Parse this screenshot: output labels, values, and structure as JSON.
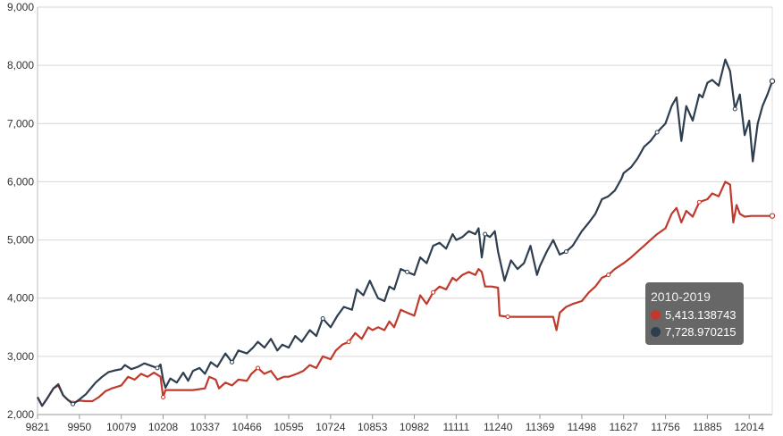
{
  "chart_data": {
    "type": "line",
    "title": "",
    "xlabel": "",
    "ylabel": "",
    "x_ticks": [
      "9821",
      "9950",
      "10079",
      "10208",
      "10337",
      "10466",
      "10595",
      "10724",
      "10853",
      "10982",
      "11111",
      "11240",
      "11369",
      "11498",
      "11627",
      "11756",
      "11885",
      "12014"
    ],
    "x_range": [
      9821,
      12085
    ],
    "y_ticks": [
      "2,000",
      "3,000",
      "4,000",
      "5,000",
      "6,000",
      "7,000",
      "8,000",
      "9,000"
    ],
    "ylim": [
      2000,
      9000
    ],
    "grid": "horizontal",
    "series": [
      {
        "key": "blue",
        "color": "#2e3e4f",
        "points": [
          [
            9821,
            2300
          ],
          [
            9835,
            2150
          ],
          [
            9850,
            2270
          ],
          [
            9870,
            2450
          ],
          [
            9885,
            2520
          ],
          [
            9900,
            2330
          ],
          [
            9915,
            2250
          ],
          [
            9930,
            2180
          ],
          [
            9950,
            2260
          ],
          [
            9970,
            2350
          ],
          [
            9985,
            2450
          ],
          [
            10000,
            2550
          ],
          [
            10020,
            2650
          ],
          [
            10040,
            2730
          ],
          [
            10060,
            2760
          ],
          [
            10079,
            2780
          ],
          [
            10090,
            2850
          ],
          [
            10110,
            2780
          ],
          [
            10130,
            2820
          ],
          [
            10150,
            2880
          ],
          [
            10170,
            2840
          ],
          [
            10190,
            2800
          ],
          [
            10200,
            2860
          ],
          [
            10208,
            2600
          ],
          [
            10215,
            2460
          ],
          [
            10230,
            2620
          ],
          [
            10250,
            2550
          ],
          [
            10270,
            2720
          ],
          [
            10285,
            2580
          ],
          [
            10300,
            2750
          ],
          [
            10320,
            2800
          ],
          [
            10337,
            2700
          ],
          [
            10355,
            2900
          ],
          [
            10375,
            2820
          ],
          [
            10400,
            3050
          ],
          [
            10420,
            2900
          ],
          [
            10440,
            3100
          ],
          [
            10466,
            3050
          ],
          [
            10485,
            3150
          ],
          [
            10500,
            3250
          ],
          [
            10520,
            3150
          ],
          [
            10540,
            3300
          ],
          [
            10560,
            3100
          ],
          [
            10575,
            3200
          ],
          [
            10595,
            3150
          ],
          [
            10615,
            3350
          ],
          [
            10635,
            3250
          ],
          [
            10660,
            3450
          ],
          [
            10680,
            3350
          ],
          [
            10700,
            3650
          ],
          [
            10724,
            3500
          ],
          [
            10745,
            3700
          ],
          [
            10765,
            3850
          ],
          [
            10790,
            3800
          ],
          [
            10805,
            4150
          ],
          [
            10825,
            4050
          ],
          [
            10845,
            4300
          ],
          [
            10853,
            4200
          ],
          [
            10870,
            4000
          ],
          [
            10890,
            3950
          ],
          [
            10905,
            4200
          ],
          [
            10920,
            4150
          ],
          [
            10940,
            4500
          ],
          [
            10960,
            4450
          ],
          [
            10982,
            4400
          ],
          [
            11000,
            4700
          ],
          [
            11020,
            4600
          ],
          [
            11040,
            4900
          ],
          [
            11060,
            4950
          ],
          [
            11080,
            4850
          ],
          [
            11100,
            5100
          ],
          [
            11111,
            5000
          ],
          [
            11130,
            5050
          ],
          [
            11150,
            5150
          ],
          [
            11170,
            5100
          ],
          [
            11180,
            5200
          ],
          [
            11190,
            4700
          ],
          [
            11200,
            5100
          ],
          [
            11215,
            5050
          ],
          [
            11230,
            5150
          ],
          [
            11240,
            4800
          ],
          [
            11260,
            4300
          ],
          [
            11280,
            4650
          ],
          [
            11300,
            4500
          ],
          [
            11320,
            4600
          ],
          [
            11340,
            4900
          ],
          [
            11360,
            4400
          ],
          [
            11369,
            4550
          ],
          [
            11390,
            4800
          ],
          [
            11410,
            5000
          ],
          [
            11430,
            4750
          ],
          [
            11450,
            4800
          ],
          [
            11470,
            4900
          ],
          [
            11498,
            5150
          ],
          [
            11520,
            5300
          ],
          [
            11540,
            5450
          ],
          [
            11560,
            5700
          ],
          [
            11580,
            5750
          ],
          [
            11600,
            5850
          ],
          [
            11620,
            6050
          ],
          [
            11627,
            6150
          ],
          [
            11650,
            6250
          ],
          [
            11670,
            6400
          ],
          [
            11690,
            6600
          ],
          [
            11710,
            6700
          ],
          [
            11730,
            6850
          ],
          [
            11756,
            7000
          ],
          [
            11775,
            7300
          ],
          [
            11790,
            7450
          ],
          [
            11805,
            6700
          ],
          [
            11820,
            7300
          ],
          [
            11840,
            7050
          ],
          [
            11860,
            7500
          ],
          [
            11870,
            7450
          ],
          [
            11885,
            7700
          ],
          [
            11900,
            7750
          ],
          [
            11920,
            7650
          ],
          [
            11940,
            8100
          ],
          [
            11955,
            7900
          ],
          [
            11970,
            7250
          ],
          [
            11985,
            7500
          ],
          [
            12000,
            6800
          ],
          [
            12014,
            7050
          ],
          [
            12025,
            6350
          ],
          [
            12040,
            7000
          ],
          [
            12055,
            7300
          ],
          [
            12070,
            7500
          ],
          [
            12085,
            7729
          ]
        ],
        "end_value": "7,728.970215"
      },
      {
        "key": "red",
        "color": "#c0392b",
        "points": [
          [
            9821,
            2300
          ],
          [
            9835,
            2150
          ],
          [
            9850,
            2270
          ],
          [
            9870,
            2450
          ],
          [
            9885,
            2500
          ],
          [
            9900,
            2330
          ],
          [
            9915,
            2250
          ],
          [
            9930,
            2200
          ],
          [
            9950,
            2240
          ],
          [
            9970,
            2230
          ],
          [
            9990,
            2230
          ],
          [
            10010,
            2300
          ],
          [
            10030,
            2400
          ],
          [
            10050,
            2450
          ],
          [
            10079,
            2500
          ],
          [
            10100,
            2650
          ],
          [
            10120,
            2600
          ],
          [
            10140,
            2700
          ],
          [
            10160,
            2650
          ],
          [
            10180,
            2720
          ],
          [
            10200,
            2650
          ],
          [
            10208,
            2300
          ],
          [
            10215,
            2420
          ],
          [
            10240,
            2420
          ],
          [
            10270,
            2420
          ],
          [
            10300,
            2420
          ],
          [
            10337,
            2450
          ],
          [
            10350,
            2650
          ],
          [
            10370,
            2600
          ],
          [
            10380,
            2450
          ],
          [
            10400,
            2550
          ],
          [
            10420,
            2500
          ],
          [
            10440,
            2600
          ],
          [
            10466,
            2580
          ],
          [
            10480,
            2700
          ],
          [
            10500,
            2800
          ],
          [
            10520,
            2700
          ],
          [
            10540,
            2750
          ],
          [
            10560,
            2600
          ],
          [
            10580,
            2650
          ],
          [
            10595,
            2650
          ],
          [
            10620,
            2700
          ],
          [
            10640,
            2750
          ],
          [
            10660,
            2850
          ],
          [
            10680,
            2800
          ],
          [
            10700,
            3000
          ],
          [
            10724,
            2950
          ],
          [
            10740,
            3100
          ],
          [
            10760,
            3200
          ],
          [
            10780,
            3250
          ],
          [
            10800,
            3400
          ],
          [
            10820,
            3300
          ],
          [
            10840,
            3500
          ],
          [
            10853,
            3450
          ],
          [
            10870,
            3500
          ],
          [
            10890,
            3450
          ],
          [
            10905,
            3600
          ],
          [
            10920,
            3500
          ],
          [
            10940,
            3800
          ],
          [
            10960,
            3750
          ],
          [
            10982,
            3700
          ],
          [
            11000,
            4050
          ],
          [
            11020,
            3900
          ],
          [
            11040,
            4100
          ],
          [
            11060,
            4200
          ],
          [
            11080,
            4150
          ],
          [
            11100,
            4350
          ],
          [
            11111,
            4300
          ],
          [
            11130,
            4400
          ],
          [
            11150,
            4450
          ],
          [
            11170,
            4400
          ],
          [
            11180,
            4500
          ],
          [
            11190,
            4450
          ],
          [
            11200,
            4200
          ],
          [
            11220,
            4200
          ],
          [
            11240,
            4180
          ],
          [
            11245,
            3700
          ],
          [
            11270,
            3680
          ],
          [
            11300,
            3680
          ],
          [
            11330,
            3680
          ],
          [
            11369,
            3680
          ],
          [
            11390,
            3680
          ],
          [
            11410,
            3680
          ],
          [
            11420,
            3450
          ],
          [
            11430,
            3750
          ],
          [
            11450,
            3850
          ],
          [
            11470,
            3900
          ],
          [
            11498,
            3950
          ],
          [
            11520,
            4100
          ],
          [
            11540,
            4200
          ],
          [
            11560,
            4350
          ],
          [
            11580,
            4400
          ],
          [
            11600,
            4500
          ],
          [
            11627,
            4600
          ],
          [
            11650,
            4700
          ],
          [
            11670,
            4800
          ],
          [
            11690,
            4900
          ],
          [
            11710,
            5000
          ],
          [
            11730,
            5100
          ],
          [
            11756,
            5200
          ],
          [
            11775,
            5450
          ],
          [
            11790,
            5550
          ],
          [
            11805,
            5300
          ],
          [
            11820,
            5500
          ],
          [
            11840,
            5400
          ],
          [
            11860,
            5650
          ],
          [
            11885,
            5700
          ],
          [
            11900,
            5800
          ],
          [
            11920,
            5750
          ],
          [
            11940,
            6000
          ],
          [
            11955,
            5950
          ],
          [
            11965,
            5300
          ],
          [
            11975,
            5600
          ],
          [
            11985,
            5450
          ],
          [
            12000,
            5400
          ],
          [
            12020,
            5413
          ],
          [
            12050,
            5413
          ],
          [
            12085,
            5413
          ]
        ],
        "end_value": "5,413.138743"
      }
    ]
  },
  "tooltip": {
    "title": "2010-2019",
    "rows": [
      {
        "color": "#c0392b",
        "value": "5,413.138743",
        "icon": "red-dot-icon"
      },
      {
        "color": "#2e3e4f",
        "value": "7,728.970215",
        "icon": "navy-dot-icon"
      }
    ]
  }
}
